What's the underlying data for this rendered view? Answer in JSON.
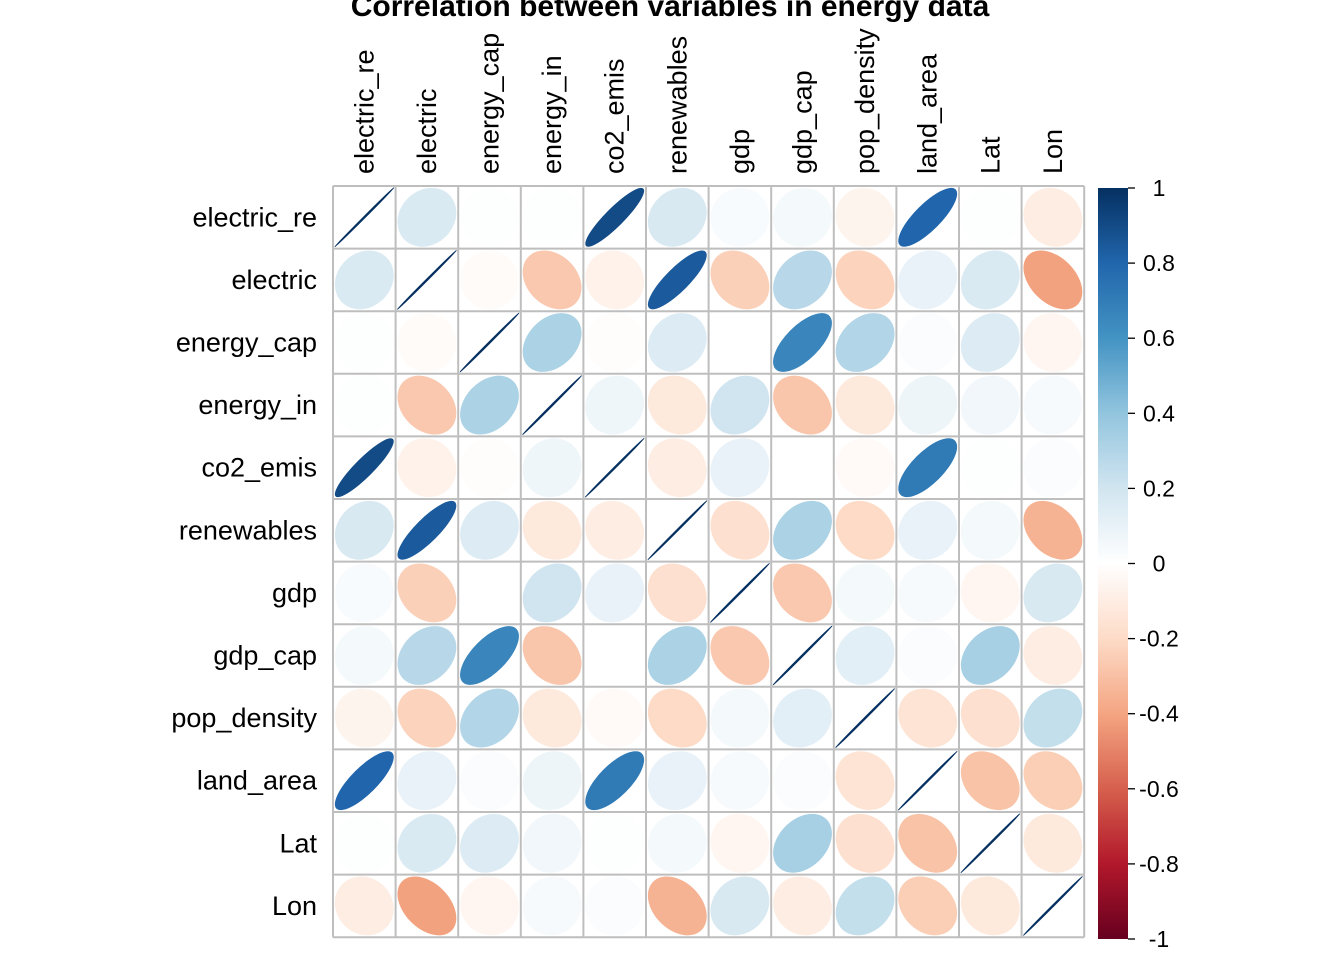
{
  "chart_data": {
    "type": "heatmap",
    "title": "Correlation between variables in energy data",
    "variables": [
      "electric_re",
      "electric",
      "energy_cap",
      "energy_in",
      "co2_emis",
      "renewables",
      "gdp",
      "gdp_cap",
      "pop_density",
      "land_area",
      "Lat",
      "Lon"
    ],
    "matrix": [
      [
        1.0,
        0.16,
        0.01,
        0.01,
        0.9,
        0.17,
        0.03,
        0.05,
        -0.06,
        0.8,
        0.01,
        -0.1
      ],
      [
        0.16,
        1.0,
        -0.02,
        -0.27,
        -0.07,
        0.84,
        -0.24,
        0.28,
        -0.23,
        0.1,
        0.16,
        -0.41
      ],
      [
        0.01,
        -0.02,
        1.0,
        0.32,
        -0.01,
        0.15,
        0.0,
        0.66,
        0.3,
        0.02,
        0.15,
        -0.05
      ],
      [
        0.01,
        -0.27,
        0.32,
        1.0,
        0.07,
        -0.12,
        0.2,
        -0.28,
        -0.12,
        0.08,
        0.06,
        0.04
      ],
      [
        0.9,
        -0.07,
        -0.01,
        0.07,
        1.0,
        -0.1,
        0.1,
        0.0,
        -0.03,
        0.71,
        0.01,
        0.02
      ],
      [
        0.17,
        0.84,
        0.15,
        -0.12,
        -0.1,
        1.0,
        -0.17,
        0.32,
        -0.2,
        0.1,
        0.05,
        -0.35
      ],
      [
        0.03,
        -0.24,
        0.0,
        0.2,
        0.1,
        -0.17,
        1.0,
        -0.27,
        0.05,
        0.04,
        -0.05,
        0.17
      ],
      [
        0.05,
        0.28,
        0.66,
        -0.28,
        0.0,
        0.32,
        -0.27,
        1.0,
        0.12,
        0.02,
        0.33,
        -0.1
      ],
      [
        -0.06,
        -0.23,
        0.3,
        -0.12,
        -0.03,
        -0.2,
        0.05,
        0.12,
        1.0,
        -0.15,
        -0.17,
        0.24
      ],
      [
        0.8,
        0.1,
        0.02,
        0.08,
        0.71,
        0.1,
        0.04,
        0.02,
        -0.15,
        1.0,
        -0.29,
        -0.25
      ],
      [
        0.01,
        0.16,
        0.15,
        0.06,
        0.01,
        0.05,
        -0.05,
        0.33,
        -0.17,
        -0.29,
        1.0,
        -0.12
      ],
      [
        -0.1,
        -0.41,
        -0.05,
        0.04,
        0.02,
        -0.35,
        0.17,
        -0.1,
        0.24,
        -0.25,
        -0.12,
        1.0
      ]
    ],
    "colorbar": {
      "range": [
        -1,
        1
      ],
      "ticks": [
        "1",
        "0.8",
        "0.6",
        "0.4",
        "0.2",
        "0",
        "-0.2",
        "-0.4",
        "-0.6",
        "-0.8",
        "-1"
      ],
      "colors": [
        "#67001F",
        "#B2182B",
        "#D6604D",
        "#F4A582",
        "#FDDBC7",
        "#FFFFFF",
        "#D1E5F0",
        "#92C5DE",
        "#4393C3",
        "#2166AC",
        "#053061"
      ]
    },
    "grid": true,
    "legend": "right"
  }
}
